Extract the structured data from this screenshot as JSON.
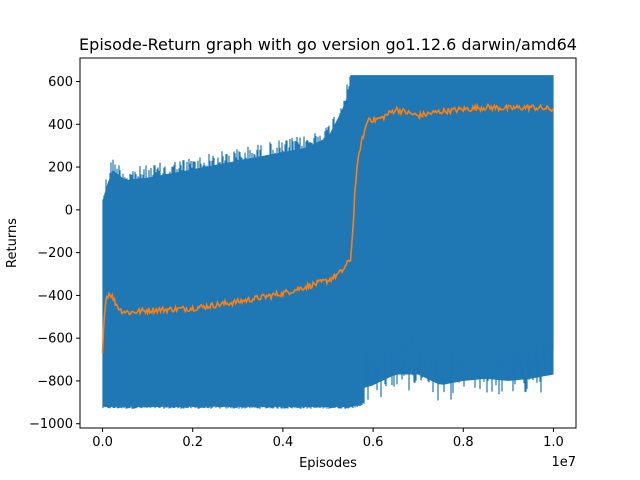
{
  "chart_data": {
    "type": "line",
    "title": "Episode-Return graph with go version go1.12.6 darwin/amd64",
    "xlabel": "Episodes",
    "ylabel": "Returns",
    "x_offset_label": "1e7",
    "x_scale_factor": 10000000,
    "xlim": [
      -0.05,
      1.05
    ],
    "ylim": [
      -1020,
      710
    ],
    "x_ticks": [
      0.0,
      0.2,
      0.4,
      0.6,
      0.8,
      1.0
    ],
    "x_tick_labels": [
      "0.0",
      "0.2",
      "0.4",
      "0.6",
      "0.8",
      "1.0"
    ],
    "y_ticks": [
      -1000,
      -800,
      -600,
      -400,
      -200,
      0,
      200,
      400,
      600
    ],
    "y_tick_labels": [
      "−1000",
      "−800",
      "−600",
      "−400",
      "−200",
      "0",
      "200",
      "400",
      "600"
    ],
    "grid": false,
    "legend": "none",
    "series": [
      {
        "color": "#1f77b4",
        "kind": "range",
        "x": [
          0.0,
          0.02,
          0.05,
          0.1,
          0.15,
          0.2,
          0.25,
          0.3,
          0.35,
          0.4,
          0.45,
          0.5,
          0.53,
          0.55,
          0.6,
          0.65,
          0.7,
          0.75,
          0.8,
          0.85,
          0.9,
          0.95,
          1.0
        ],
        "upper": [
          100,
          250,
          200,
          210,
          230,
          250,
          270,
          290,
          310,
          330,
          350,
          400,
          520,
          630,
          630,
          630,
          630,
          630,
          630,
          630,
          630,
          630,
          630
        ],
        "lower": [
          -930,
          -930,
          -930,
          -930,
          -930,
          -930,
          -930,
          -930,
          -930,
          -930,
          -930,
          -930,
          -930,
          -930,
          -900,
          -850,
          -850,
          -900,
          -880,
          -870,
          -880,
          -870,
          -850
        ]
      },
      {
        "color": "#ff7f0e",
        "kind": "line",
        "x": [
          0.0,
          0.003,
          0.008,
          0.015,
          0.02,
          0.03,
          0.04,
          0.06,
          0.08,
          0.1,
          0.15,
          0.2,
          0.25,
          0.3,
          0.35,
          0.4,
          0.45,
          0.5,
          0.53,
          0.55,
          0.555,
          0.56,
          0.565,
          0.57,
          0.58,
          0.59,
          0.6,
          0.62,
          0.65,
          0.7,
          0.75,
          0.8,
          0.85,
          0.9,
          0.95,
          1.0
        ],
        "values": [
          -680,
          -500,
          -410,
          -390,
          -400,
          -440,
          -470,
          -480,
          -475,
          -470,
          -465,
          -460,
          -445,
          -430,
          -410,
          -390,
          -360,
          -330,
          -290,
          -230,
          -100,
          100,
          200,
          280,
          360,
          430,
          420,
          430,
          470,
          440,
          460,
          470,
          480,
          475,
          480,
          470
        ]
      }
    ]
  }
}
